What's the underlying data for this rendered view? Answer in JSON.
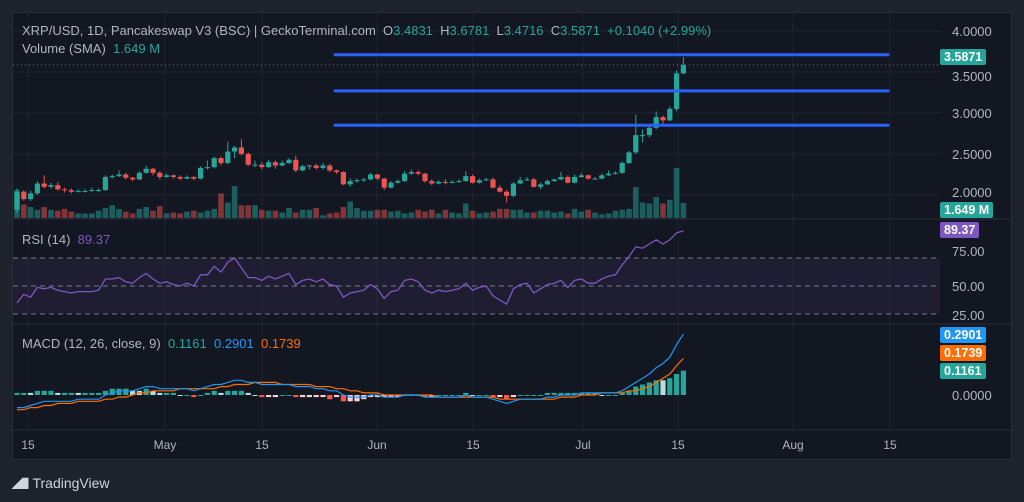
{
  "header": {
    "title": "XRP/USD, 1D, Pancakeswap V3 (BSC) | GeckoTerminal.com",
    "open_label": "O",
    "open": "3.4831",
    "high_label": "H",
    "high": "3.6781",
    "low_label": "L",
    "low": "3.4716",
    "close_label": "C",
    "close": "3.5871",
    "change": "+0.1040 (+2.99%)",
    "volume_label": "Volume (SMA)",
    "volume": "1.649 M"
  },
  "rsi": {
    "label": "RSI (14)",
    "value": "89.37"
  },
  "macd": {
    "label": "MACD (12, 26, close, 9)",
    "hist": "0.1161",
    "macd": "0.2901",
    "signal": "0.1739"
  },
  "tags": {
    "price": "3.5871",
    "volume": "1.649 M",
    "rsi": "89.37",
    "macd": "0.2901",
    "signal": "0.1739",
    "hist": "0.1161"
  },
  "brand": {
    "logo": "TV",
    "name": "TradingView"
  },
  "colors": {
    "up": "#26a69a",
    "down": "#ef5350",
    "rsi": "#7e57c2",
    "macd": "#2196f3",
    "signal": "#ff6d00",
    "levels": "#2962ff",
    "background": "#131722"
  },
  "chart_data": [
    {
      "type": "candlestick",
      "interval": "1D",
      "ylim": [
        1.75,
        4.1
      ],
      "y_ticks": [
        "4.0000",
        "3.5000",
        "3.0000",
        "2.5000",
        "2.0000"
      ],
      "x_ticks": [
        "15",
        "May",
        "15",
        "Jun",
        "15",
        "Jul",
        "15",
        "Aug",
        "15"
      ],
      "grid": true,
      "horizontal_levels": [
        3.71,
        3.27,
        2.85
      ],
      "last_price": 3.5871,
      "ohlc": [
        [
          1.82,
          2.08,
          1.78,
          2.04
        ],
        [
          2.04,
          2.06,
          1.93,
          1.95
        ],
        [
          1.95,
          2.05,
          1.93,
          2.02
        ],
        [
          2.02,
          2.17,
          2.0,
          2.14
        ],
        [
          2.14,
          2.24,
          2.08,
          2.1
        ],
        [
          2.1,
          2.15,
          2.08,
          2.12
        ],
        [
          2.12,
          2.16,
          2.05,
          2.07
        ],
        [
          2.07,
          2.09,
          2.03,
          2.06
        ],
        [
          2.06,
          2.08,
          2.02,
          2.04
        ],
        [
          2.04,
          2.07,
          2.03,
          2.05
        ],
        [
          2.05,
          2.07,
          2.03,
          2.05
        ],
        [
          2.05,
          2.09,
          2.04,
          2.06
        ],
        [
          2.06,
          2.08,
          2.04,
          2.06
        ],
        [
          2.06,
          2.24,
          2.05,
          2.22
        ],
        [
          2.22,
          2.25,
          2.2,
          2.23
        ],
        [
          2.23,
          2.3,
          2.22,
          2.25
        ],
        [
          2.25,
          2.27,
          2.19,
          2.21
        ],
        [
          2.21,
          2.22,
          2.17,
          2.19
        ],
        [
          2.19,
          2.29,
          2.18,
          2.27
        ],
        [
          2.27,
          2.36,
          2.26,
          2.32
        ],
        [
          2.32,
          2.33,
          2.24,
          2.27
        ],
        [
          2.27,
          2.29,
          2.19,
          2.22
        ],
        [
          2.22,
          2.26,
          2.21,
          2.24
        ],
        [
          2.24,
          2.25,
          2.2,
          2.22
        ],
        [
          2.22,
          2.24,
          2.18,
          2.2
        ],
        [
          2.2,
          2.24,
          2.19,
          2.22
        ],
        [
          2.22,
          2.23,
          2.18,
          2.2
        ],
        [
          2.2,
          2.35,
          2.19,
          2.33
        ],
        [
          2.33,
          2.42,
          2.31,
          2.34
        ],
        [
          2.34,
          2.47,
          2.33,
          2.45
        ],
        [
          2.45,
          2.47,
          2.36,
          2.39
        ],
        [
          2.39,
          2.65,
          2.38,
          2.53
        ],
        [
          2.53,
          2.6,
          2.45,
          2.58
        ],
        [
          2.58,
          2.68,
          2.48,
          2.5
        ],
        [
          2.5,
          2.52,
          2.35,
          2.37
        ],
        [
          2.37,
          2.42,
          2.34,
          2.37
        ],
        [
          2.37,
          2.4,
          2.31,
          2.34
        ],
        [
          2.34,
          2.43,
          2.33,
          2.4
        ],
        [
          2.4,
          2.42,
          2.32,
          2.36
        ],
        [
          2.36,
          2.42,
          2.35,
          2.39
        ],
        [
          2.39,
          2.45,
          2.38,
          2.43
        ],
        [
          2.43,
          2.48,
          2.28,
          2.3
        ],
        [
          2.3,
          2.37,
          2.29,
          2.35
        ],
        [
          2.35,
          2.37,
          2.31,
          2.36
        ],
        [
          2.36,
          2.38,
          2.31,
          2.33
        ],
        [
          2.33,
          2.39,
          2.31,
          2.36
        ],
        [
          2.36,
          2.38,
          2.28,
          2.3
        ],
        [
          2.3,
          2.31,
          2.26,
          2.28
        ],
        [
          2.28,
          2.29,
          2.12,
          2.13
        ],
        [
          2.13,
          2.2,
          2.1,
          2.17
        ],
        [
          2.17,
          2.2,
          2.15,
          2.18
        ],
        [
          2.18,
          2.21,
          2.16,
          2.19
        ],
        [
          2.19,
          2.27,
          2.18,
          2.25
        ],
        [
          2.25,
          2.26,
          2.18,
          2.2
        ],
        [
          2.2,
          2.21,
          2.06,
          2.09
        ],
        [
          2.09,
          2.17,
          2.08,
          2.15
        ],
        [
          2.15,
          2.19,
          2.14,
          2.17
        ],
        [
          2.17,
          2.29,
          2.16,
          2.26
        ],
        [
          2.26,
          2.31,
          2.25,
          2.28
        ],
        [
          2.28,
          2.3,
          2.24,
          2.26
        ],
        [
          2.26,
          2.27,
          2.15,
          2.17
        ],
        [
          2.17,
          2.19,
          2.12,
          2.14
        ],
        [
          2.14,
          2.18,
          2.13,
          2.16
        ],
        [
          2.16,
          2.19,
          2.13,
          2.15
        ],
        [
          2.15,
          2.18,
          2.14,
          2.16
        ],
        [
          2.16,
          2.19,
          2.15,
          2.17
        ],
        [
          2.17,
          2.29,
          2.16,
          2.23
        ],
        [
          2.23,
          2.25,
          2.14,
          2.15
        ],
        [
          2.15,
          2.2,
          2.14,
          2.18
        ],
        [
          2.18,
          2.21,
          2.17,
          2.19
        ],
        [
          2.19,
          2.21,
          2.08,
          2.09
        ],
        [
          2.09,
          2.12,
          2.03,
          2.04
        ],
        [
          2.04,
          2.06,
          1.91,
          1.99
        ],
        [
          1.99,
          2.16,
          1.97,
          2.14
        ],
        [
          2.14,
          2.22,
          2.13,
          2.18
        ],
        [
          2.18,
          2.22,
          2.17,
          2.19
        ],
        [
          2.19,
          2.21,
          2.09,
          2.1
        ],
        [
          2.1,
          2.15,
          2.07,
          2.13
        ],
        [
          2.13,
          2.19,
          2.12,
          2.17
        ],
        [
          2.17,
          2.2,
          2.16,
          2.19
        ],
        [
          2.19,
          2.28,
          2.18,
          2.22
        ],
        [
          2.22,
          2.24,
          2.14,
          2.15
        ],
        [
          2.15,
          2.25,
          2.14,
          2.22
        ],
        [
          2.22,
          2.27,
          2.21,
          2.24
        ],
        [
          2.24,
          2.25,
          2.19,
          2.2
        ],
        [
          2.2,
          2.22,
          2.19,
          2.2
        ],
        [
          2.2,
          2.26,
          2.19,
          2.24
        ],
        [
          2.24,
          2.3,
          2.23,
          2.26
        ],
        [
          2.26,
          2.29,
          2.25,
          2.27
        ],
        [
          2.27,
          2.41,
          2.26,
          2.39
        ],
        [
          2.39,
          2.54,
          2.38,
          2.52
        ],
        [
          2.52,
          2.98,
          2.5,
          2.73
        ],
        [
          2.73,
          2.8,
          2.64,
          2.73
        ],
        [
          2.73,
          2.84,
          2.7,
          2.82
        ],
        [
          2.82,
          3.02,
          2.8,
          2.95
        ],
        [
          2.95,
          2.97,
          2.84,
          2.91
        ],
        [
          2.91,
          3.08,
          2.9,
          3.05
        ],
        [
          3.05,
          3.52,
          3.02,
          3.4831
        ],
        [
          3.4831,
          3.6781,
          3.4716,
          3.5871
        ]
      ]
    },
    {
      "type": "bar",
      "unit": "M",
      "values": [
        3.1,
        1.5,
        1.2,
        0.9,
        1.2,
        0.9,
        0.8,
        1.0,
        0.7,
        0.5,
        0.5,
        0.5,
        0.8,
        1.1,
        1.4,
        1.0,
        0.7,
        0.5,
        1.0,
        1.2,
        0.8,
        1.3,
        0.5,
        0.6,
        0.5,
        0.7,
        0.8,
        0.6,
        0.8,
        1.0,
        2.7,
        1.7,
        3.5,
        1.4,
        1.4,
        1.4,
        0.9,
        0.8,
        0.8,
        0.6,
        1.1,
        0.6,
        0.9,
        0.9,
        1.1,
        0.3,
        0.5,
        0.6,
        1.2,
        1.8,
        1.1,
        0.8,
        0.8,
        0.9,
        0.9,
        0.7,
        0.8,
        0.5,
        0.6,
        0.9,
        0.7,
        0.9,
        0.5,
        0.9,
        0.6,
        0.5,
        1.6,
        0.8,
        0.5,
        0.6,
        0.7,
        1.0,
        1.0,
        0.9,
        0.9,
        0.6,
        0.6,
        0.8,
        0.8,
        0.6,
        0.7,
        0.5,
        1.0,
        0.7,
        0.9,
        0.6,
        0.4,
        0.5,
        0.8,
        0.9,
        1.0,
        3.4,
        1.7,
        1.6,
        2.3,
        1.6,
        2.0,
        5.5,
        1.649
      ]
    },
    {
      "type": "line",
      "ylim": [
        20,
        95
      ],
      "y_ticks": [
        "75.00",
        "50.00",
        "25.00"
      ],
      "bands": [
        70,
        50,
        30
      ],
      "values": [
        38,
        44,
        42,
        49,
        48,
        49,
        47,
        46,
        45,
        46,
        46,
        46,
        47,
        55,
        55,
        56,
        53,
        52,
        56,
        59,
        55,
        52,
        53,
        51,
        50,
        52,
        50,
        58,
        58,
        64,
        60,
        67,
        70,
        63,
        56,
        56,
        54,
        57,
        55,
        57,
        59,
        51,
        54,
        55,
        53,
        55,
        51,
        50,
        42,
        45,
        46,
        47,
        51,
        48,
        41,
        46,
        47,
        54,
        55,
        53,
        47,
        45,
        47,
        46,
        47,
        48,
        52,
        47,
        49,
        50,
        43,
        40,
        37,
        48,
        51,
        52,
        45,
        48,
        51,
        52,
        54,
        49,
        54,
        55,
        52,
        52,
        55,
        57,
        58,
        65,
        71,
        78,
        77,
        80,
        83,
        80,
        83,
        88,
        89.37
      ]
    },
    {
      "type": "line",
      "y_ticks": [
        "0.0000"
      ],
      "series": [
        {
          "values": [
            -0.06,
            -0.06,
            -0.05,
            -0.04,
            -0.03,
            -0.03,
            -0.03,
            -0.03,
            -0.03,
            -0.02,
            -0.02,
            -0.02,
            -0.02,
            0.0,
            0.01,
            0.02,
            0.02,
            0.02,
            0.03,
            0.04,
            0.04,
            0.03,
            0.03,
            0.03,
            0.03,
            0.03,
            0.02,
            0.03,
            0.04,
            0.05,
            0.05,
            0.06,
            0.07,
            0.07,
            0.06,
            0.06,
            0.05,
            0.05,
            0.05,
            0.05,
            0.05,
            0.04,
            0.04,
            0.04,
            0.03,
            0.03,
            0.02,
            0.02,
            0.0,
            -0.01,
            -0.01,
            -0.01,
            0.0,
            0.0,
            -0.01,
            -0.01,
            -0.01,
            0.0,
            0.0,
            0.0,
            -0.01,
            -0.01,
            -0.01,
            -0.01,
            -0.01,
            -0.01,
            0.0,
            -0.01,
            -0.01,
            -0.01,
            -0.02,
            -0.03,
            -0.04,
            -0.03,
            -0.02,
            -0.02,
            -0.02,
            -0.02,
            -0.01,
            -0.01,
            0.0,
            0.0,
            0.0,
            0.01,
            0.01,
            0.01,
            0.01,
            0.01,
            0.01,
            0.02,
            0.04,
            0.06,
            0.08,
            0.1,
            0.13,
            0.15,
            0.18,
            0.24,
            0.2901
          ]
        },
        {
          "values": [
            -0.07,
            -0.07,
            -0.06,
            -0.06,
            -0.05,
            -0.05,
            -0.04,
            -0.04,
            -0.04,
            -0.03,
            -0.03,
            -0.03,
            -0.03,
            -0.02,
            -0.02,
            -0.01,
            -0.01,
            0.0,
            0.01,
            0.01,
            0.02,
            0.02,
            0.02,
            0.02,
            0.03,
            0.03,
            0.03,
            0.03,
            0.03,
            0.03,
            0.04,
            0.04,
            0.05,
            0.05,
            0.05,
            0.06,
            0.06,
            0.06,
            0.06,
            0.05,
            0.05,
            0.05,
            0.05,
            0.05,
            0.04,
            0.04,
            0.04,
            0.03,
            0.03,
            0.02,
            0.02,
            0.01,
            0.01,
            0.01,
            0.0,
            0.0,
            0.0,
            0.0,
            0.0,
            0.0,
            0.0,
            0.0,
            -0.01,
            -0.01,
            -0.01,
            -0.01,
            -0.01,
            -0.01,
            -0.01,
            -0.01,
            -0.01,
            -0.02,
            -0.02,
            -0.02,
            -0.02,
            -0.02,
            -0.02,
            -0.02,
            -0.02,
            -0.02,
            -0.01,
            -0.01,
            -0.01,
            0.0,
            0.0,
            0.0,
            0.01,
            0.01,
            0.01,
            0.01,
            0.02,
            0.02,
            0.03,
            0.04,
            0.06,
            0.08,
            0.1,
            0.14,
            0.1739
          ]
        }
      ]
    }
  ]
}
